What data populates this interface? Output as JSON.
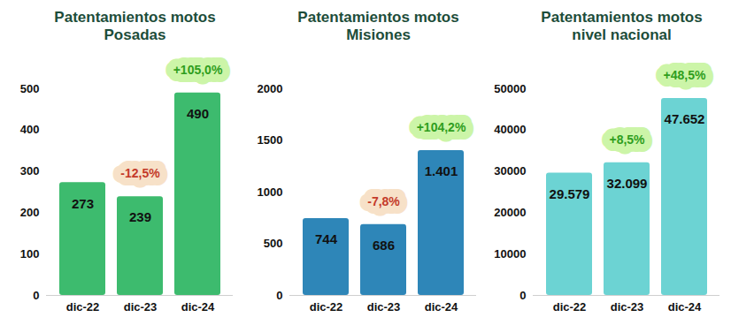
{
  "chart_data": [
    {
      "type": "bar",
      "title": "Patentamientos motos Posadas",
      "categories": [
        "dic-22",
        "dic-23",
        "dic-24"
      ],
      "values": [
        273,
        239,
        490
      ],
      "color": "#3dbb6e",
      "ylim": [
        0,
        500
      ],
      "yticks": [
        0,
        100,
        200,
        300,
        400,
        500
      ],
      "grid": false,
      "data_labels": true,
      "annotations": [
        {
          "category": "dic-23",
          "text": "-12,5%",
          "value": -12.5
        },
        {
          "category": "dic-24",
          "text": "+105,0%",
          "value": 105.0
        }
      ]
    },
    {
      "type": "bar",
      "title": "Patentamientos motos Misiones",
      "categories": [
        "dic-22",
        "dic-23",
        "dic-24"
      ],
      "values": [
        744,
        686,
        1401
      ],
      "value_labels": [
        "744",
        "686",
        "1.401"
      ],
      "color": "#2e86b8",
      "ylim": [
        0,
        2000
      ],
      "yticks": [
        0,
        500,
        1000,
        1500,
        2000
      ],
      "grid": false,
      "data_labels": true,
      "annotations": [
        {
          "category": "dic-23",
          "text": "-7,8%",
          "value": -7.8
        },
        {
          "category": "dic-24",
          "text": "+104,2%",
          "value": 104.2
        }
      ]
    },
    {
      "type": "bar",
      "title": "Patentamientos motos nivel nacional",
      "categories": [
        "dic-22",
        "dic-23",
        "dic-24"
      ],
      "values": [
        29579,
        32099,
        47652
      ],
      "value_labels": [
        "29.579",
        "32.099",
        "47.652"
      ],
      "color": "#6cd3d3",
      "ylim": [
        0,
        50000
      ],
      "yticks": [
        0,
        10000,
        20000,
        30000,
        40000,
        50000
      ],
      "grid": false,
      "data_labels": true,
      "annotations": [
        {
          "category": "dic-23",
          "text": "+8,5%",
          "value": 8.5
        },
        {
          "category": "dic-24",
          "text": "+48,5%",
          "value": 48.5
        }
      ]
    }
  ]
}
